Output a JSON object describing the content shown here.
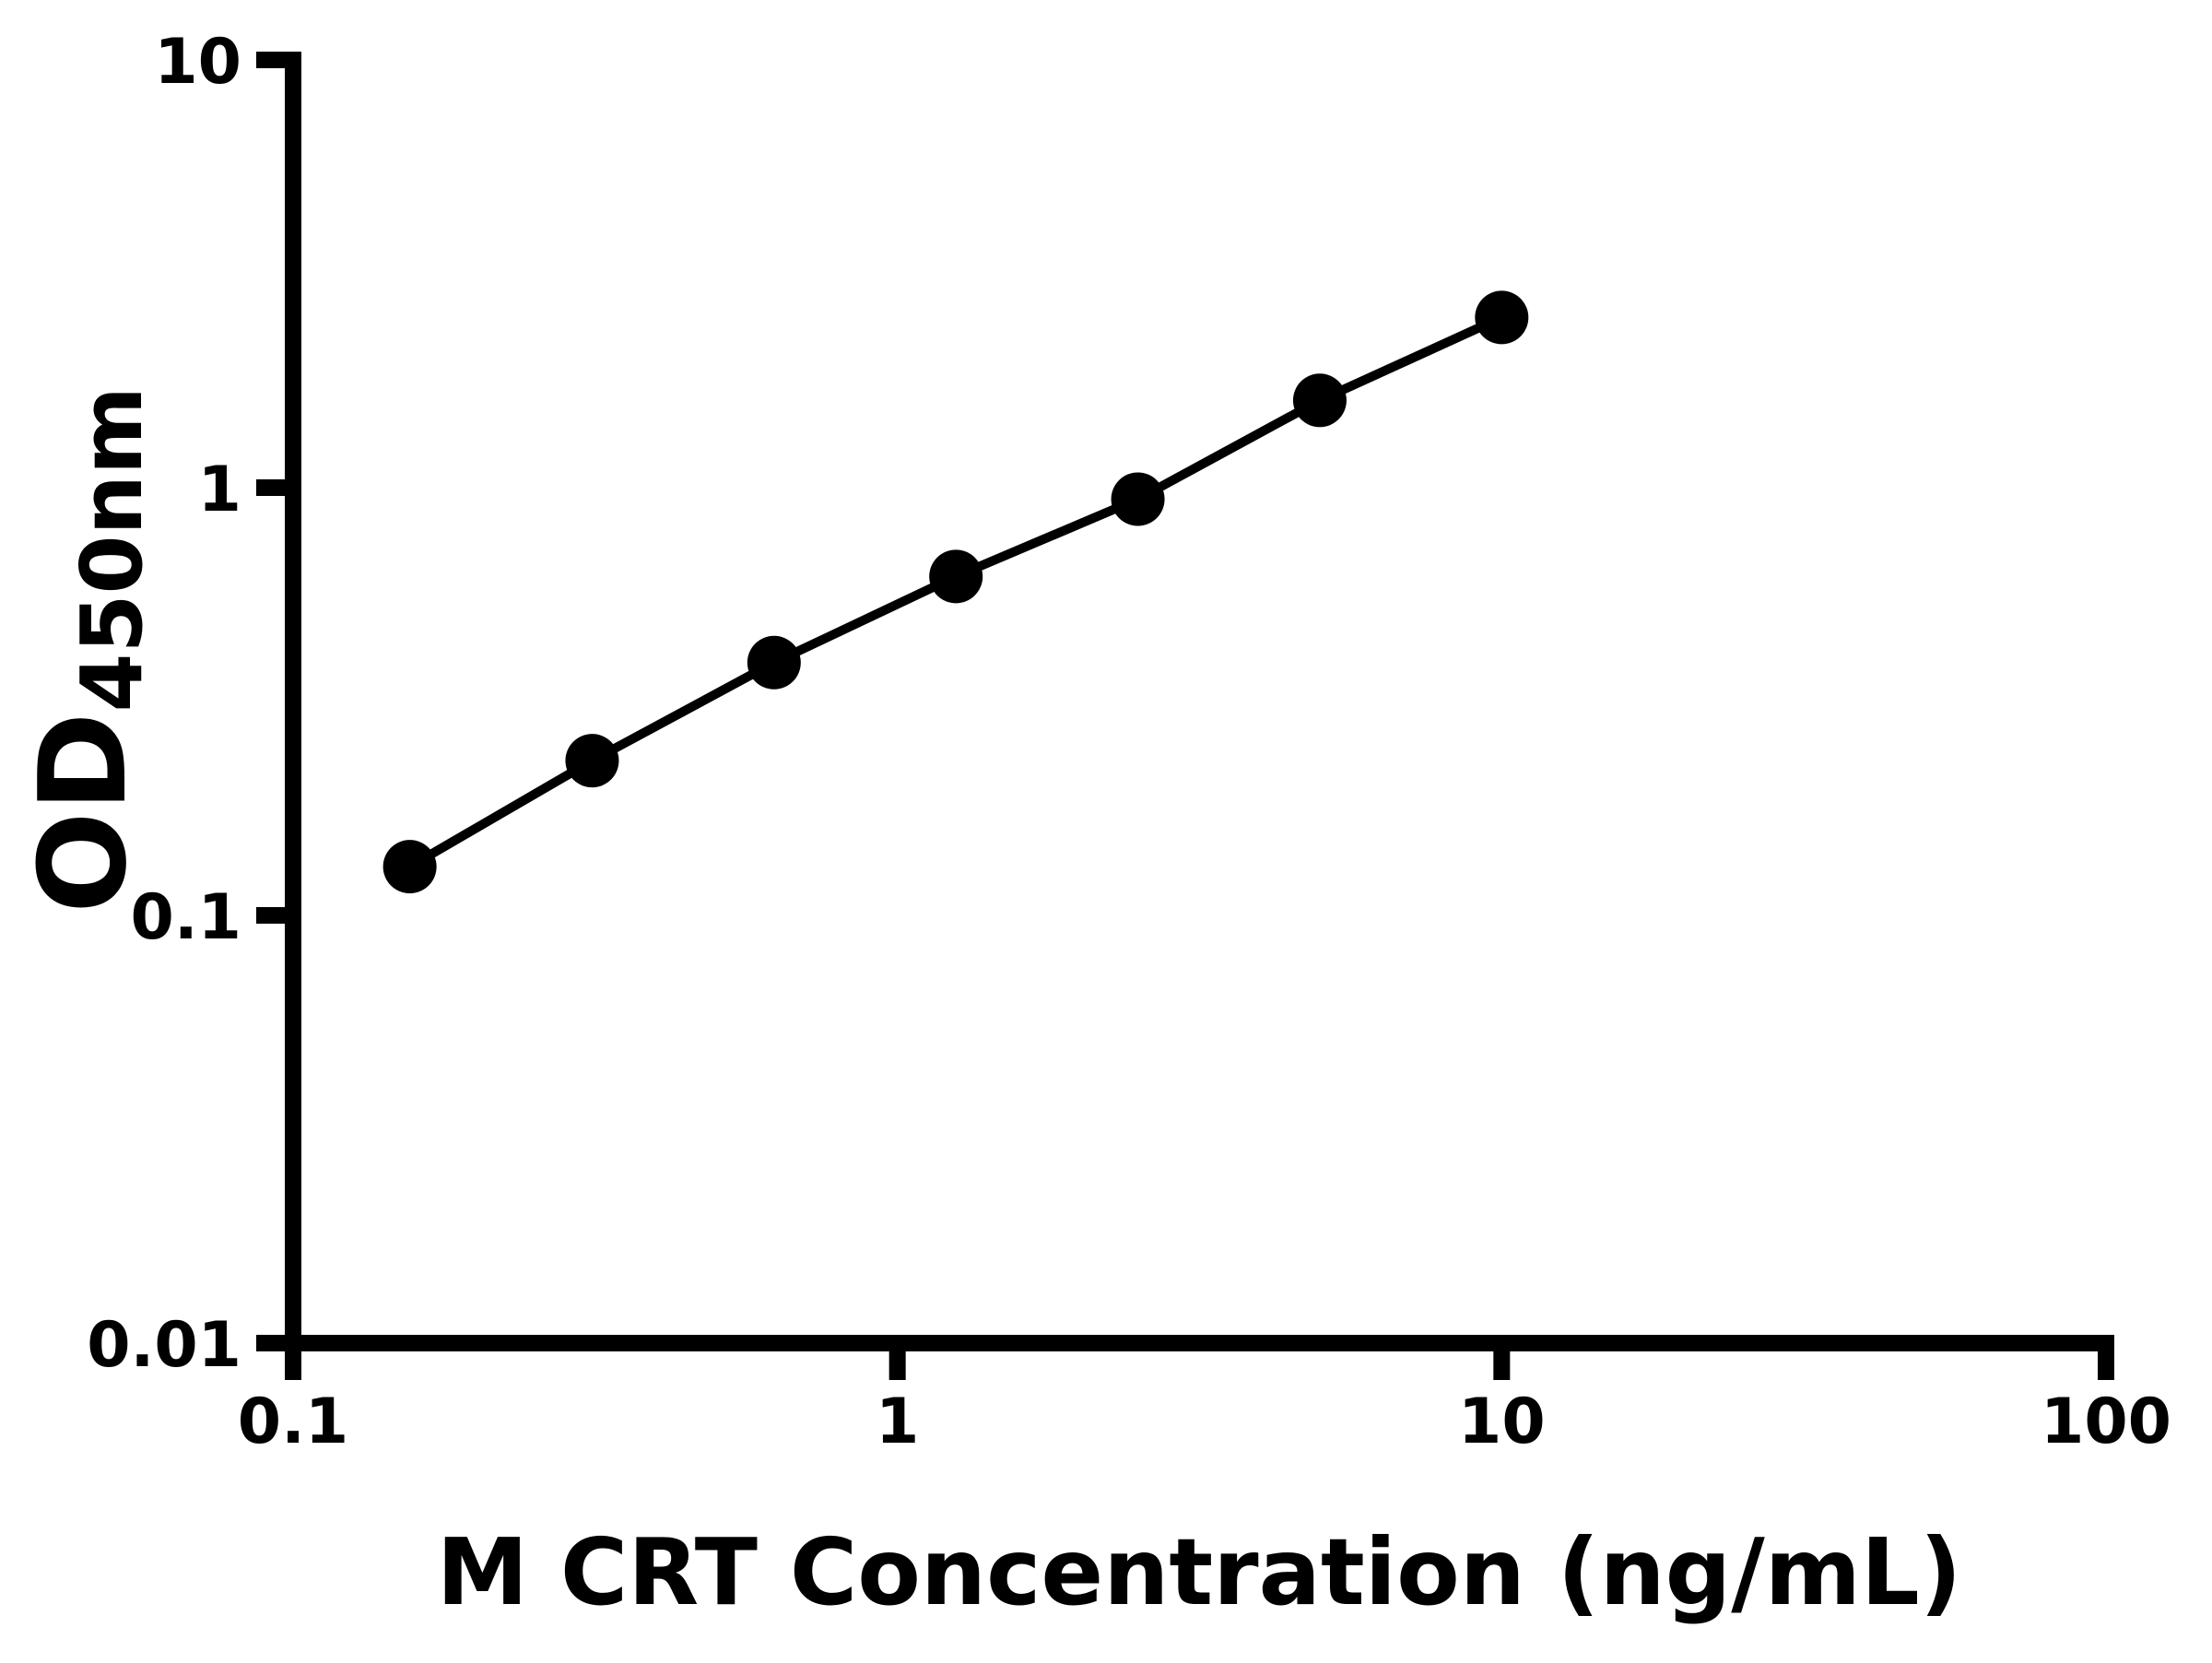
{
  "chart_data": {
    "type": "line",
    "series_name": "standard-curve",
    "x": [
      0.156,
      0.3125,
      0.625,
      1.25,
      2.5,
      5,
      10
    ],
    "y": [
      0.13,
      0.23,
      0.39,
      0.62,
      0.94,
      1.6,
      2.5
    ],
    "xlabel": "M CRT Concentration (ng/mL)",
    "ylabel_base": "OD",
    "ylabel_subscript": "450nm",
    "x_scale": "log",
    "y_scale": "log",
    "xlim": [
      0.1,
      100
    ],
    "ylim": [
      0.01,
      10
    ],
    "x_tick_values": [
      0.1,
      1,
      10,
      100
    ],
    "x_tick_labels": [
      "0.1",
      "1",
      "10",
      "100"
    ],
    "y_tick_values": [
      10,
      1,
      0.1,
      0.01
    ],
    "y_tick_labels": [
      "10",
      "1",
      "0.1",
      "0.01"
    ],
    "grid": "off",
    "legend": "none",
    "marker": "filled-circle",
    "line_color": "#000000",
    "marker_color": "#000000",
    "axis_color": "#000000",
    "background_color": "#ffffff"
  }
}
